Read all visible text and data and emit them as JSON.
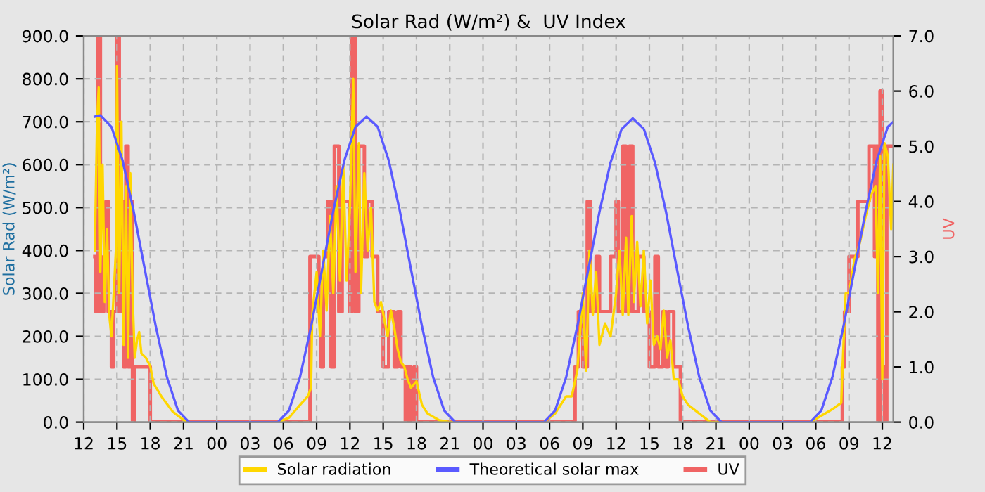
{
  "chart_data": {
    "type": "line",
    "title": "Solar Rad (W/m²) &  UV Index",
    "ylabel": "Solar Rad (W/m²)",
    "y2label": "UV",
    "xlim": [
      12,
      85
    ],
    "xticks": [
      {
        "value": 12,
        "label": "12"
      },
      {
        "value": 15,
        "label": "15"
      },
      {
        "value": 18,
        "label": "18"
      },
      {
        "value": 21,
        "label": "21"
      },
      {
        "value": 24,
        "label": "00"
      },
      {
        "value": 27,
        "label": "03"
      },
      {
        "value": 30,
        "label": "06"
      },
      {
        "value": 33,
        "label": "09"
      },
      {
        "value": 36,
        "label": "12"
      },
      {
        "value": 39,
        "label": "15"
      },
      {
        "value": 42,
        "label": "18"
      },
      {
        "value": 45,
        "label": "21"
      },
      {
        "value": 48,
        "label": "00"
      },
      {
        "value": 51,
        "label": "03"
      },
      {
        "value": 54,
        "label": "06"
      },
      {
        "value": 57,
        "label": "09"
      },
      {
        "value": 60,
        "label": "12"
      },
      {
        "value": 63,
        "label": "15"
      },
      {
        "value": 66,
        "label": "18"
      },
      {
        "value": 69,
        "label": "21"
      },
      {
        "value": 72,
        "label": "00"
      },
      {
        "value": 75,
        "label": "03"
      },
      {
        "value": 78,
        "label": "06"
      },
      {
        "value": 81,
        "label": "09"
      },
      {
        "value": 84,
        "label": "12"
      }
    ],
    "ylim": [
      0,
      900
    ],
    "yticks": [
      {
        "value": 0,
        "label": "0.0"
      },
      {
        "value": 100,
        "label": "100.0"
      },
      {
        "value": 200,
        "label": "200.0"
      },
      {
        "value": 300,
        "label": "300.0"
      },
      {
        "value": 400,
        "label": "400.0"
      },
      {
        "value": 500,
        "label": "500.0"
      },
      {
        "value": 600,
        "label": "600.0"
      },
      {
        "value": 700,
        "label": "700.0"
      },
      {
        "value": 800,
        "label": "800.0"
      },
      {
        "value": 900,
        "label": "900.0"
      }
    ],
    "y2lim": [
      0,
      7
    ],
    "y2ticks": [
      {
        "value": 0,
        "label": "0.0"
      },
      {
        "value": 1,
        "label": "1.0"
      },
      {
        "value": 2,
        "label": "2.0"
      },
      {
        "value": 3,
        "label": "3.0"
      },
      {
        "value": 4,
        "label": "4.0"
      },
      {
        "value": 5,
        "label": "5.0"
      },
      {
        "value": 6,
        "label": "6.0"
      },
      {
        "value": 7,
        "label": "7.0"
      }
    ],
    "grid": true,
    "legend": "bottom",
    "marker": "none",
    "series": [
      {
        "name": "UV",
        "color": "#f06464",
        "type": "step",
        "axis": "y2",
        "x": [
          13.0,
          13.1,
          13.3,
          13.5,
          13.8,
          14.0,
          14.2,
          14.5,
          14.7,
          15.0,
          15.2,
          15.4,
          15.6,
          15.8,
          16.0,
          16.2,
          16.4,
          16.6,
          18.0,
          32.4,
          33.2,
          33.4,
          33.6,
          34.0,
          34.3,
          34.6,
          35.0,
          35.3,
          36.0,
          36.2,
          36.5,
          36.8,
          37.3,
          37.6,
          38.0,
          38.5,
          39.0,
          39.5,
          40.0,
          40.3,
          40.6,
          41.0,
          41.2,
          41.5,
          41.8,
          42.0,
          56.3,
          56.6,
          57.0,
          57.4,
          57.7,
          58.2,
          58.5,
          59.5,
          60.0,
          60.2,
          60.6,
          60.9,
          61.2,
          61.5,
          62.0,
          62.5,
          63.0,
          63.5,
          63.8,
          64.2,
          64.5,
          64.7,
          65.2,
          65.8,
          80.4,
          80.6,
          81.0,
          81.8,
          82.8,
          83.3,
          83.4,
          83.6,
          83.8,
          84.0,
          84.2,
          84.4,
          85.0
        ],
        "values": [
          3,
          2,
          7,
          2,
          3,
          4,
          2,
          1,
          2,
          7,
          2,
          4,
          1,
          5,
          1,
          4,
          0,
          1,
          0,
          3,
          2,
          1,
          3,
          4,
          1,
          5,
          2,
          4,
          2,
          7,
          2,
          5,
          3,
          4,
          3,
          2,
          1,
          2,
          1,
          2,
          1,
          0,
          1,
          0,
          1,
          0,
          1,
          2,
          1,
          4,
          2,
          3,
          2,
          3,
          4,
          2,
          5,
          2,
          5,
          2,
          3,
          2,
          1,
          3,
          1,
          2,
          1,
          2,
          1,
          0,
          1,
          2,
          3,
          4,
          5,
          3,
          5,
          0,
          6,
          1,
          0,
          5,
          5
        ]
      },
      {
        "name": "Solar radiation",
        "color": "#ffd700",
        "x": [
          13.0,
          13.2,
          13.35,
          13.5,
          13.7,
          13.9,
          14.1,
          14.3,
          14.5,
          14.7,
          14.9,
          15.0,
          15.2,
          15.4,
          15.6,
          15.8,
          16.0,
          16.2,
          16.4,
          16.6,
          16.8,
          17.0,
          17.2,
          17.6,
          18.0,
          18.3,
          19.0,
          20.0,
          21.0,
          21.5,
          29.5,
          30.5,
          31.5,
          32.2,
          32.5,
          32.6,
          33.0,
          33.3,
          33.6,
          33.9,
          34.2,
          34.5,
          34.8,
          35.1,
          35.4,
          35.7,
          36.0,
          36.3,
          36.5,
          36.8,
          37.0,
          37.3,
          37.6,
          37.9,
          38.2,
          38.5,
          38.8,
          39.1,
          39.4,
          39.7,
          40.0,
          40.3,
          40.6,
          40.9,
          41.2,
          41.5,
          42.0,
          42.5,
          43.0,
          44.0,
          45.0,
          53.5,
          54.5,
          55.5,
          56.0,
          56.5,
          57.0,
          57.3,
          57.6,
          57.9,
          58.2,
          58.5,
          59.0,
          59.5,
          60.0,
          60.3,
          60.6,
          60.9,
          61.1,
          61.4,
          61.6,
          61.9,
          62.2,
          62.5,
          62.8,
          63.1,
          63.4,
          63.7,
          64.0,
          64.3,
          64.6,
          64.9,
          65.2,
          65.6,
          66.0,
          66.5,
          67.5,
          68.5,
          77.5,
          78.5,
          79.5,
          80.3,
          80.4,
          80.7,
          81.0,
          81.5,
          82.0,
          82.5,
          83.0,
          83.4,
          83.6,
          83.8,
          84.0,
          84.2,
          84.5,
          84.8,
          85.0
        ],
        "values": [
          400,
          700,
          780,
          350,
          600,
          280,
          450,
          250,
          200,
          300,
          400,
          830,
          300,
          700,
          180,
          550,
          150,
          580,
          300,
          150,
          190,
          210,
          160,
          150,
          130,
          90,
          60,
          25,
          5,
          0,
          0,
          10,
          40,
          60,
          80,
          250,
          350,
          200,
          400,
          260,
          480,
          300,
          550,
          330,
          600,
          330,
          500,
          800,
          350,
          650,
          300,
          580,
          400,
          500,
          280,
          260,
          280,
          240,
          200,
          260,
          220,
          170,
          140,
          130,
          100,
          80,
          95,
          40,
          20,
          5,
          0,
          0,
          20,
          60,
          60,
          120,
          300,
          120,
          400,
          250,
          350,
          180,
          230,
          200,
          300,
          400,
          250,
          430,
          250,
          480,
          280,
          420,
          270,
          400,
          230,
          330,
          180,
          200,
          170,
          260,
          150,
          190,
          100,
          100,
          60,
          40,
          20,
          0,
          0,
          15,
          30,
          45,
          120,
          300,
          300,
          380,
          420,
          480,
          530,
          550,
          300,
          620,
          100,
          650,
          620,
          450,
          600
        ]
      },
      {
        "name": "Theoretical solar max",
        "color": "#5a5aff",
        "x": [
          13.0,
          13.5,
          14.5,
          15.5,
          16.5,
          17.5,
          18.5,
          19.5,
          20.5,
          21.5,
          29.5,
          30.5,
          31.5,
          32.5,
          33.5,
          34.5,
          35.5,
          36.5,
          37.5,
          38.5,
          39.5,
          40.5,
          41.5,
          42.5,
          43.5,
          44.5,
          45.5,
          53.5,
          54.5,
          55.5,
          56.5,
          57.5,
          58.5,
          59.5,
          60.5,
          61.5,
          62.5,
          63.5,
          64.5,
          65.5,
          66.5,
          67.5,
          68.5,
          69.5,
          77.5,
          78.5,
          79.5,
          80.5,
          81.5,
          82.5,
          83.5,
          84.5,
          85.0
        ],
        "values": [
          712,
          715,
          688,
          610,
          492,
          357,
          223,
          105,
          27,
          0,
          0,
          27,
          105,
          223,
          357,
          492,
          610,
          688,
          712,
          688,
          610,
          492,
          357,
          223,
          105,
          27,
          0,
          0,
          27,
          105,
          223,
          357,
          490,
          605,
          683,
          708,
          683,
          605,
          490,
          355,
          222,
          105,
          27,
          0,
          0,
          27,
          105,
          223,
          357,
          492,
          610,
          688,
          700
        ]
      }
    ]
  }
}
